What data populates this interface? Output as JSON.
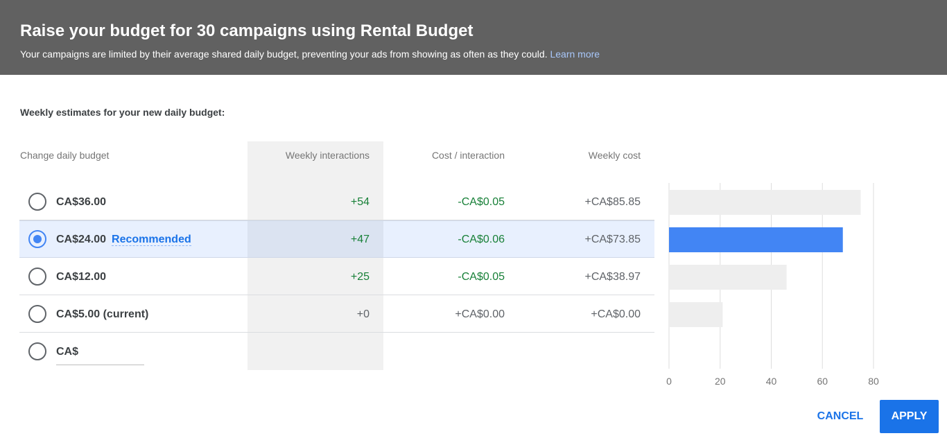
{
  "header": {
    "title": "Raise your budget for 30 campaigns using Rental Budget",
    "subtitle": "Your campaigns are limited by their average shared daily budget, preventing your ads from showing as often as they could.",
    "learn_more": "Learn more"
  },
  "section_title": "Weekly estimates for your new daily budget:",
  "columns": {
    "budget": "Change daily budget",
    "interactions": "Weekly interactions",
    "cost_per_interaction": "Cost / interaction",
    "weekly_cost": "Weekly cost"
  },
  "rows": [
    {
      "budget": "CA$36.00",
      "interactions": "+54",
      "cost_per_interaction": "-CA$0.05",
      "weekly_cost": "+CA$85.85",
      "selected": false
    },
    {
      "budget": "CA$24.00",
      "recommended": "Recommended",
      "interactions": "+47",
      "cost_per_interaction": "-CA$0.06",
      "weekly_cost": "+CA$73.85",
      "selected": true
    },
    {
      "budget": "CA$12.00",
      "interactions": "+25",
      "cost_per_interaction": "-CA$0.05",
      "weekly_cost": "+CA$38.97",
      "selected": false
    },
    {
      "budget": "CA$5.00 (current)",
      "interactions": "+0",
      "cost_per_interaction": "+CA$0.00",
      "weekly_cost": "+CA$0.00",
      "selected": false
    },
    {
      "budget": "CA$",
      "custom": true,
      "selected": false
    }
  ],
  "chart_data": {
    "type": "bar",
    "orientation": "horizontal",
    "categories": [
      "CA$36.00",
      "CA$24.00",
      "CA$12.00",
      "CA$5.00 (current)"
    ],
    "values": [
      75,
      68,
      46,
      21
    ],
    "xlim": [
      0,
      80
    ],
    "ticks": [
      "0",
      "20",
      "40",
      "60",
      "80"
    ],
    "highlight_index": 1,
    "colors": {
      "highlight": "#4285f4",
      "default": "#eeeeee",
      "grid": "#dddddd",
      "tick_label": "#757575"
    },
    "grid": true
  },
  "actions": {
    "cancel": "CANCEL",
    "apply": "APPLY"
  },
  "colors": {
    "header_bg": "#616161",
    "accent": "#1a73e8",
    "positive": "#188038"
  }
}
